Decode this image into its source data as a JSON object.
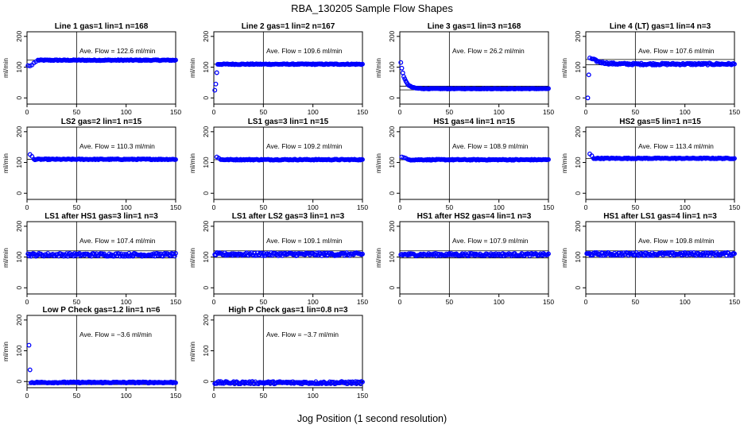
{
  "figure": {
    "title": "RBA_130205  Sample Flow Shapes",
    "xlabel": "Jog Position (1 second resolution)"
  },
  "style": {
    "point_color": "#0000ff",
    "line_color": "#000000"
  },
  "chart_data": [
    {
      "type": "scatter",
      "title": "Line 1 gas=1 lin=1 n=168",
      "ylabel": "ml/min",
      "xlim": [
        0,
        150
      ],
      "ylim": [
        -20,
        215
      ],
      "xticks": [
        0,
        50,
        100,
        150
      ],
      "yticks": [
        0,
        100,
        200
      ],
      "vline": 50,
      "hlines": [
        122.6
      ],
      "annotation": "Ave. Flow =  122.6  ml/min",
      "pattern": {
        "start": [
          [
            1,
            105
          ],
          [
            3,
            104
          ],
          [
            5,
            107
          ],
          [
            7,
            114
          ],
          [
            9,
            118
          ]
        ],
        "level": 122.6,
        "from": 11,
        "noise": 1.5
      }
    },
    {
      "type": "scatter",
      "title": "Line 2 gas=1 lin=2 n=167",
      "ylabel": "ml/min",
      "xlim": [
        0,
        150
      ],
      "ylim": [
        -20,
        215
      ],
      "xticks": [
        0,
        50,
        100,
        150
      ],
      "yticks": [
        0,
        100,
        200
      ],
      "vline": 50,
      "hlines": [
        109.6
      ],
      "annotation": "Ave. Flow =  109.6  ml/min",
      "pattern": {
        "start": [
          [
            1,
            25
          ],
          [
            2,
            45
          ],
          [
            3,
            82
          ]
        ],
        "level": 109.6,
        "from": 4,
        "noise": 1.5
      }
    },
    {
      "type": "scatter",
      "title": "Line 3 gas=1 lin=3 n=168",
      "ylabel": "ml/min",
      "xlim": [
        0,
        150
      ],
      "ylim": [
        -20,
        215
      ],
      "xticks": [
        0,
        50,
        100,
        150
      ],
      "yticks": [
        0,
        100,
        200
      ],
      "vline": 50,
      "hlines": [
        26.2,
        38
      ],
      "annotation": "Ave. Flow =  26.2  ml/min",
      "pattern": {
        "decay": {
          "a": 115,
          "b": 30,
          "k": 0.25,
          "x0": 1
        },
        "level": 30,
        "from": 1,
        "noise": 1
      }
    },
    {
      "type": "scatter",
      "title": "Line 4 (LT) gas=1 lin=4 n=3",
      "ylabel": "ml/min",
      "xlim": [
        0,
        150
      ],
      "ylim": [
        -20,
        215
      ],
      "xticks": [
        0,
        50,
        100,
        150
      ],
      "yticks": [
        0,
        100,
        200
      ],
      "vline": 50,
      "hlines": [
        107.6,
        125
      ],
      "annotation": "Ave. Flow =  107.6  ml/min",
      "pattern": {
        "start": [
          [
            2,
            0
          ],
          [
            3,
            75
          ],
          [
            4,
            130
          ],
          [
            6,
            127
          ]
        ],
        "decay": {
          "a": 128,
          "b": 110,
          "k": 0.12,
          "x0": 6
        },
        "level": 110,
        "from": 7,
        "noise": 3
      }
    },
    {
      "type": "scatter",
      "title": "LS2 gas=2 lin=1 n=15",
      "ylabel": "ml/min",
      "xlim": [
        0,
        150
      ],
      "ylim": [
        -20,
        215
      ],
      "xticks": [
        0,
        50,
        100,
        150
      ],
      "yticks": [
        0,
        100,
        200
      ],
      "vline": 50,
      "hlines": [
        110.3
      ],
      "annotation": "Ave. Flow =  110.3  ml/min",
      "pattern": {
        "start": [
          [
            3,
            126
          ],
          [
            5,
            120
          ]
        ],
        "level": 110.3,
        "from": 7,
        "noise": 1.5
      }
    },
    {
      "type": "scatter",
      "title": "LS1 gas=3 lin=1 n=15",
      "ylabel": "ml/min",
      "xlim": [
        0,
        150
      ],
      "ylim": [
        -20,
        215
      ],
      "xticks": [
        0,
        50,
        100,
        150
      ],
      "yticks": [
        0,
        100,
        200
      ],
      "vline": 50,
      "hlines": [
        109.2
      ],
      "annotation": "Ave. Flow =  109.2  ml/min",
      "pattern": {
        "start": [
          [
            3,
            118
          ],
          [
            5,
            114
          ]
        ],
        "level": 109.2,
        "from": 7,
        "noise": 1.5
      }
    },
    {
      "type": "scatter",
      "title": "HS1 gas=4 lin=1 n=15",
      "ylabel": "ml/min",
      "xlim": [
        0,
        150
      ],
      "ylim": [
        -20,
        215
      ],
      "xticks": [
        0,
        50,
        100,
        150
      ],
      "yticks": [
        0,
        100,
        200
      ],
      "vline": 50,
      "hlines": [
        108.9
      ],
      "annotation": "Ave. Flow =  108.9  ml/min",
      "pattern": {
        "start": [
          [
            2,
            118
          ],
          [
            4,
            116
          ],
          [
            6,
            114
          ]
        ],
        "level": 108.9,
        "from": 8,
        "noise": 1.5
      }
    },
    {
      "type": "scatter",
      "title": "HS2 gas=5 lin=1 n=15",
      "ylabel": "ml/min",
      "xlim": [
        0,
        150
      ],
      "ylim": [
        -20,
        215
      ],
      "xticks": [
        0,
        50,
        100,
        150
      ],
      "yticks": [
        0,
        100,
        200
      ],
      "vline": 50,
      "hlines": [
        113.4
      ],
      "annotation": "Ave. Flow =  113.4  ml/min",
      "pattern": {
        "start": [
          [
            4,
            128
          ],
          [
            6,
            122
          ]
        ],
        "level": 113.4,
        "from": 8,
        "noise": 1.5
      }
    },
    {
      "type": "scatter",
      "title": "LS1 after HS1 gas=3 lin=1 n=3",
      "ylabel": "ml/min",
      "xlim": [
        0,
        150
      ],
      "ylim": [
        -20,
        215
      ],
      "xticks": [
        0,
        50,
        100,
        150
      ],
      "yticks": [
        0,
        100,
        200
      ],
      "vline": 50,
      "hlines": [
        120,
        97
      ],
      "annotation": "Ave. Flow =  107.4  ml/min",
      "pattern": {
        "start": [],
        "level": 107.4,
        "from": 1,
        "noise": 5
      }
    },
    {
      "type": "scatter",
      "title": "LS1 after LS2 gas=3 lin=1 n=3",
      "ylabel": "ml/min",
      "xlim": [
        0,
        150
      ],
      "ylim": [
        -20,
        215
      ],
      "xticks": [
        0,
        50,
        100,
        150
      ],
      "yticks": [
        0,
        100,
        200
      ],
      "vline": 50,
      "hlines": [
        120,
        99
      ],
      "annotation": "Ave. Flow =  109.1  ml/min",
      "pattern": {
        "start": [],
        "level": 109.1,
        "from": 1,
        "noise": 5
      }
    },
    {
      "type": "scatter",
      "title": "HS1 after HS2 gas=4 lin=1 n=3",
      "ylabel": "ml/min",
      "xlim": [
        0,
        150
      ],
      "ylim": [
        -20,
        215
      ],
      "xticks": [
        0,
        50,
        100,
        150
      ],
      "yticks": [
        0,
        100,
        200
      ],
      "vline": 50,
      "hlines": [
        120,
        97
      ],
      "annotation": "Ave. Flow =  107.9  ml/min",
      "pattern": {
        "start": [],
        "level": 107.9,
        "from": 1,
        "noise": 4
      }
    },
    {
      "type": "scatter",
      "title": "HS1 after LS1 gas=4 lin=1 n=3",
      "ylabel": "ml/min",
      "xlim": [
        0,
        150
      ],
      "ylim": [
        -20,
        215
      ],
      "xticks": [
        0,
        50,
        100,
        150
      ],
      "yticks": [
        0,
        100,
        200
      ],
      "vline": 50,
      "hlines": [
        120,
        99
      ],
      "annotation": "Ave. Flow =  109.8  ml/min",
      "pattern": {
        "start": [],
        "level": 109.8,
        "from": 1,
        "noise": 5
      }
    },
    {
      "type": "scatter",
      "title": "Low P Check gas=1.2 lin=1 n=6",
      "ylabel": "ml/min",
      "xlim": [
        0,
        150
      ],
      "ylim": [
        -20,
        215
      ],
      "xticks": [
        0,
        50,
        100,
        150
      ],
      "yticks": [
        0,
        100,
        200
      ],
      "vline": 50,
      "hlines": [
        0,
        -10
      ],
      "annotation": "Ave. Flow =  −3.6  ml/min",
      "pattern": {
        "start": [
          [
            2,
            118
          ],
          [
            3,
            38
          ]
        ],
        "level": -3,
        "from": 4,
        "noise": 2
      }
    },
    {
      "type": "scatter",
      "title": "High P Check gas=1 lin=0.8 n=3",
      "ylabel": "ml/min",
      "xlim": [
        0,
        150
      ],
      "ylim": [
        -20,
        215
      ],
      "xticks": [
        0,
        50,
        100,
        150
      ],
      "yticks": [
        0,
        100,
        200
      ],
      "vline": 50,
      "hlines": [
        0,
        -10
      ],
      "annotation": "Ave. Flow =  −3.7  ml/min",
      "pattern": {
        "start": [],
        "level": -3.7,
        "from": 1,
        "noise": 4
      }
    }
  ]
}
